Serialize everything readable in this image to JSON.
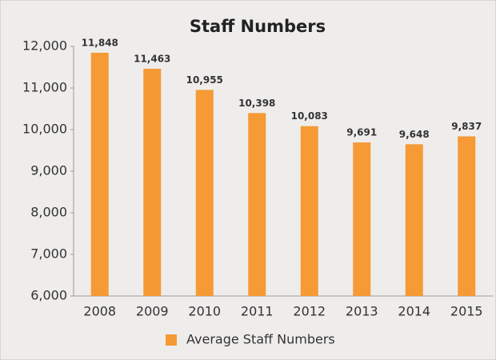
{
  "chart_data": {
    "type": "bar",
    "title": "Staff Numbers",
    "categories": [
      "2008",
      "2009",
      "2010",
      "2011",
      "2012",
      "2013",
      "2014",
      "2015"
    ],
    "series": [
      {
        "name": "Average Staff Numbers",
        "color": "#f59a35",
        "values": [
          11848,
          11463,
          10955,
          10398,
          10083,
          9691,
          9648,
          9837
        ],
        "value_labels": [
          "11,848",
          "11,463",
          "10,955",
          "10,398",
          "10,083",
          "9,691",
          "9,648",
          "9,837"
        ]
      }
    ],
    "ylim": [
      6000,
      12000
    ],
    "yticks": [
      {
        "value": 6000,
        "label": "6,000"
      },
      {
        "value": 7000,
        "label": "7,000"
      },
      {
        "value": 8000,
        "label": "8,000"
      },
      {
        "value": 9000,
        "label": "9,000"
      },
      {
        "value": 10000,
        "label": "10,000"
      },
      {
        "value": 11000,
        "label": "11,000"
      },
      {
        "value": 12000,
        "label": "12,000"
      }
    ],
    "grid": false,
    "legend": "bottom"
  }
}
